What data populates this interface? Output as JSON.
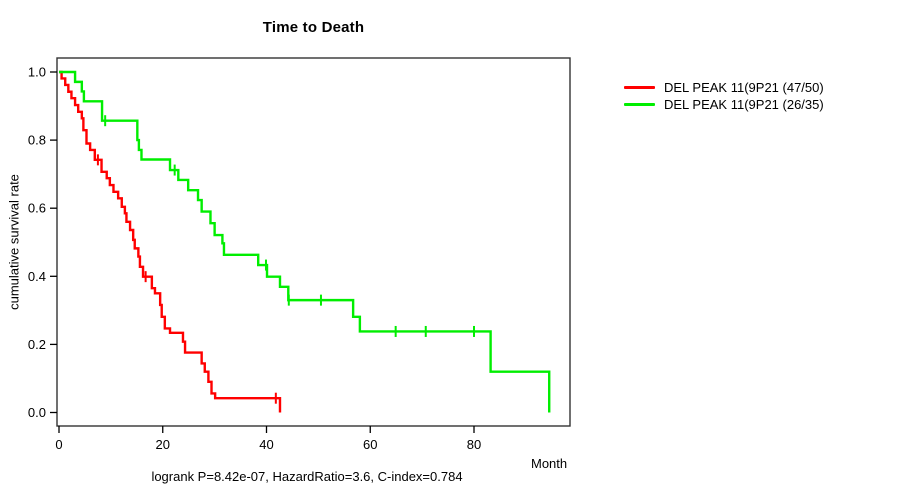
{
  "chart": {
    "title": "Time to Death",
    "y_axis_label": "cumulative survival rate",
    "x_axis_label": "Month",
    "footer": "logrank P=8.42e-07, HazardRatio=3.6, C-index=0.784"
  },
  "chart_data": {
    "type": "line",
    "subtype": "kaplan-meier-step",
    "title": "Time to Death",
    "xlabel": "Month",
    "ylabel": "cumulative survival rate",
    "xlim": [
      0,
      98
    ],
    "ylim": [
      0.0,
      1.0
    ],
    "x_ticks": [
      0,
      20,
      40,
      60,
      80
    ],
    "y_ticks": [
      1.0,
      0.8,
      0.6,
      0.4,
      0.2,
      0.0
    ],
    "grid": false,
    "legend_position": "right-outside",
    "annotation": "logrank P=8.42e-07, HazardRatio=3.6, C-index=0.784",
    "series": [
      {
        "name": "DEL PEAK 11(9P21 (47/50)",
        "color": "#ff0000",
        "events": "47/50",
        "steps": [
          [
            0,
            1.0
          ],
          [
            0.5,
            0.981
          ],
          [
            1.2,
            0.962
          ],
          [
            1.8,
            0.942
          ],
          [
            2.4,
            0.923
          ],
          [
            3.1,
            0.903
          ],
          [
            3.7,
            0.883
          ],
          [
            4.4,
            0.864
          ],
          [
            4.7,
            0.829
          ],
          [
            5.3,
            0.79
          ],
          [
            6.0,
            0.771
          ],
          [
            6.9,
            0.742
          ],
          [
            8.2,
            0.707
          ],
          [
            9.2,
            0.688
          ],
          [
            9.8,
            0.668
          ],
          [
            10.5,
            0.648
          ],
          [
            11.4,
            0.629
          ],
          [
            12.1,
            0.604
          ],
          [
            12.7,
            0.585
          ],
          [
            13.0,
            0.56
          ],
          [
            13.7,
            0.536
          ],
          [
            14.3,
            0.507
          ],
          [
            14.6,
            0.482
          ],
          [
            15.3,
            0.458
          ],
          [
            15.6,
            0.428
          ],
          [
            16.2,
            0.399
          ],
          [
            17.9,
            0.365
          ],
          [
            18.5,
            0.35
          ],
          [
            19.5,
            0.316
          ],
          [
            19.8,
            0.281
          ],
          [
            20.4,
            0.247
          ],
          [
            21.4,
            0.234
          ],
          [
            23.9,
            0.208
          ],
          [
            24.3,
            0.176
          ],
          [
            27.5,
            0.144
          ],
          [
            28.1,
            0.12
          ],
          [
            28.8,
            0.09
          ],
          [
            29.4,
            0.056
          ],
          [
            30.1,
            0.042
          ],
          [
            42.6,
            0.0
          ]
        ],
        "censor_marks": [
          [
            7.5,
            0.742
          ],
          [
            16.7,
            0.399
          ],
          [
            41.8,
            0.042
          ]
        ]
      },
      {
        "name": "DEL PEAK 11(9P21 (26/35)",
        "color": "#00ee00",
        "events": "26/35",
        "steps": [
          [
            0,
            1.0
          ],
          [
            3.1,
            0.971
          ],
          [
            4.4,
            0.943
          ],
          [
            4.8,
            0.914
          ],
          [
            8.3,
            0.857
          ],
          [
            15.1,
            0.8
          ],
          [
            15.4,
            0.771
          ],
          [
            15.9,
            0.743
          ],
          [
            21.4,
            0.712
          ],
          [
            23.0,
            0.683
          ],
          [
            24.9,
            0.653
          ],
          [
            26.8,
            0.624
          ],
          [
            27.5,
            0.59
          ],
          [
            29.2,
            0.556
          ],
          [
            30.0,
            0.521
          ],
          [
            31.5,
            0.497
          ],
          [
            31.8,
            0.463
          ],
          [
            38.4,
            0.433
          ],
          [
            40.1,
            0.399
          ],
          [
            42.6,
            0.369
          ],
          [
            44.2,
            0.33
          ],
          [
            56.7,
            0.281
          ],
          [
            58.0,
            0.238
          ],
          [
            83.2,
            0.12
          ],
          [
            94.5,
            0.0
          ]
        ],
        "censor_marks": [
          [
            8.9,
            0.857
          ],
          [
            22.3,
            0.712
          ],
          [
            39.9,
            0.433
          ],
          [
            44.3,
            0.33
          ],
          [
            50.5,
            0.33
          ],
          [
            64.9,
            0.238
          ],
          [
            70.7,
            0.238
          ],
          [
            80.0,
            0.238
          ]
        ]
      }
    ]
  }
}
